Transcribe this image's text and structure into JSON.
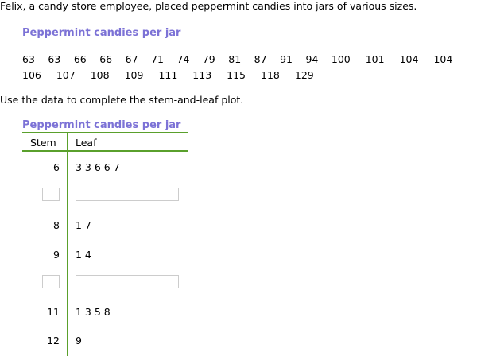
{
  "intro": "Felix, a candy store employee, placed peppermint candies into jars of various sizes.",
  "data_title": "Peppermint candies per jar",
  "values": [
    "63",
    "63",
    "66",
    "66",
    "67",
    "71",
    "74",
    "79",
    "81",
    "87",
    "91",
    "94",
    "100",
    "101",
    "104",
    "104",
    "106",
    "107",
    "108",
    "109",
    "111",
    "113",
    "115",
    "118",
    "129"
  ],
  "instruction": "Use the data to complete the stem-and-leaf plot.",
  "plot": {
    "title": "Peppermint candies per jar",
    "stem_header": "Stem",
    "leaf_header": "Leaf",
    "rows": [
      {
        "stem": "6",
        "leaf": "3 3 6 6 7"
      },
      {
        "stem": "",
        "leaf": ""
      },
      {
        "stem": "8",
        "leaf": "1 7"
      },
      {
        "stem": "9",
        "leaf": "1 4"
      },
      {
        "stem": "",
        "leaf": ""
      },
      {
        "stem": "11",
        "leaf": "1 3 5 8"
      },
      {
        "stem": "12",
        "leaf": "9"
      }
    ]
  },
  "colors": {
    "title": "#7c72d6",
    "rule": "#5aa02c"
  }
}
